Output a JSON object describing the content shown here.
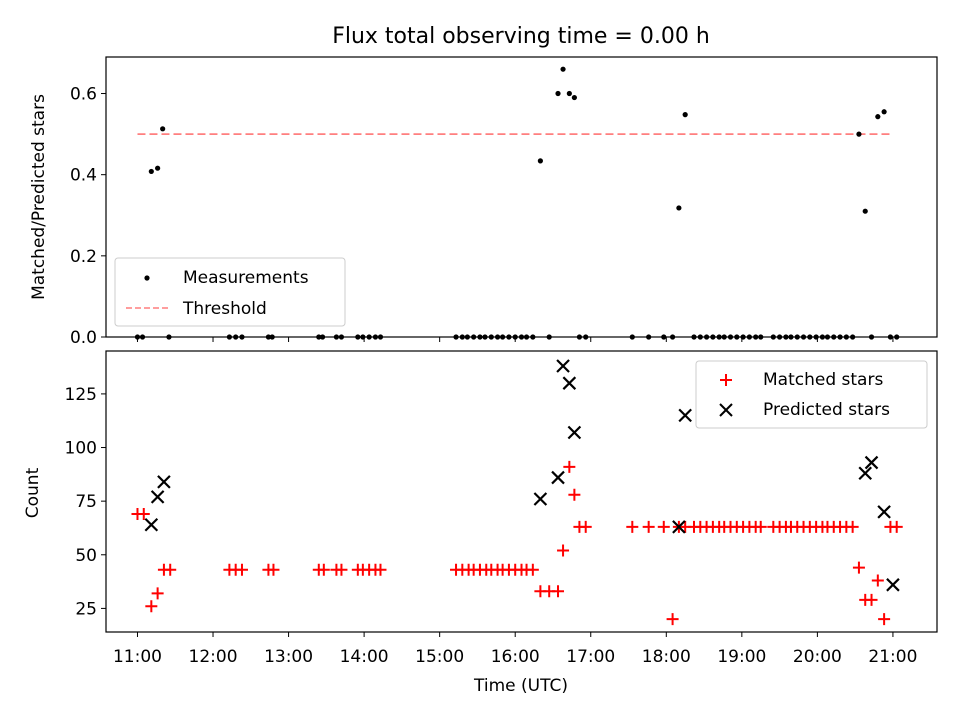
{
  "chart_data": [
    {
      "type": "scatter",
      "title": "Flux total observing time = 0.00 h",
      "xlabel": "",
      "ylabel": "Matched/Predicted stars",
      "ylim": [
        0,
        0.69
      ],
      "yticks": [
        0.0,
        0.2,
        0.4,
        0.6
      ],
      "ytick_labels": [
        "0.0",
        "0.2",
        "0.4",
        "0.6"
      ],
      "grid": false,
      "legend_position": "lower-left",
      "series": [
        {
          "name": "Measurements",
          "marker": "dot",
          "color": "#000000",
          "x": [
            "11:00",
            "11:04",
            "11:11",
            "11:16",
            "11:20",
            "11:25",
            "12:13",
            "12:18",
            "12:23",
            "12:44",
            "12:47",
            "13:24",
            "13:27",
            "13:38",
            "13:42",
            "13:55",
            "13:59",
            "14:04",
            "14:09",
            "14:13",
            "15:13",
            "15:18",
            "15:22",
            "15:27",
            "15:32",
            "15:36",
            "15:41",
            "15:46",
            "15:50",
            "15:55",
            "16:00",
            "16:05",
            "16:09",
            "16:14",
            "16:20",
            "16:27",
            "16:34",
            "16:38",
            "16:43",
            "16:47",
            "16:51",
            "16:56",
            "17:33",
            "17:46",
            "17:58",
            "18:05",
            "18:10",
            "18:15",
            "18:22",
            "18:27",
            "18:32",
            "18:37",
            "18:42",
            "18:46",
            "18:51",
            "18:56",
            "19:01",
            "19:06",
            "19:11",
            "19:15",
            "19:25",
            "19:30",
            "19:35",
            "19:39",
            "19:44",
            "19:49",
            "19:54",
            "19:59",
            "20:04",
            "20:08",
            "20:13",
            "20:18",
            "20:23",
            "20:28",
            "20:33",
            "20:38",
            "20:43",
            "20:48",
            "20:53",
            "20:58",
            "21:03"
          ],
          "y": [
            0,
            0,
            0.408,
            0.416,
            0.513,
            0,
            0,
            0,
            0,
            0,
            0,
            0,
            0,
            0,
            0,
            0,
            0,
            0,
            0,
            0,
            0,
            0,
            0,
            0,
            0,
            0,
            0,
            0,
            0,
            0,
            0,
            0,
            0,
            0,
            0.434,
            0,
            0.6,
            0.66,
            0.6,
            0.59,
            0,
            0,
            0,
            0,
            0,
            0,
            0.318,
            0.548,
            0,
            0,
            0,
            0,
            0,
            0,
            0,
            0,
            0,
            0,
            0,
            0,
            0,
            0,
            0,
            0,
            0,
            0,
            0,
            0,
            0,
            0,
            0,
            0,
            0,
            0,
            0.5,
            0.31,
            0,
            0.543,
            0.555,
            0,
            0
          ]
        },
        {
          "name": "Threshold",
          "style": "dashed",
          "color": "#ff7f7f",
          "x": [
            "11:00",
            "21:00"
          ],
          "y": [
            0.5,
            0.5
          ]
        }
      ]
    },
    {
      "type": "scatter",
      "title": "",
      "xlabel": "Time (UTC)",
      "ylabel": "Count",
      "xlim": [
        "10:35",
        "21:35"
      ],
      "xticks": [
        "11:00",
        "12:00",
        "13:00",
        "14:00",
        "15:00",
        "16:00",
        "17:00",
        "18:00",
        "19:00",
        "20:00",
        "21:00"
      ],
      "ylim": [
        14,
        145
      ],
      "yticks": [
        25,
        50,
        75,
        100,
        125
      ],
      "grid": false,
      "legend_position": "upper-right",
      "series": [
        {
          "name": "Matched stars",
          "marker": "plus",
          "color": "#ff0000",
          "x": [
            "11:00",
            "11:05",
            "11:11",
            "11:16",
            "11:21",
            "11:26",
            "12:13",
            "12:18",
            "12:23",
            "12:44",
            "12:48",
            "13:24",
            "13:28",
            "13:38",
            "13:42",
            "13:55",
            "13:59",
            "14:04",
            "14:09",
            "14:13",
            "15:13",
            "15:18",
            "15:23",
            "15:27",
            "15:32",
            "15:37",
            "15:41",
            "15:46",
            "15:50",
            "15:55",
            "16:00",
            "16:05",
            "16:09",
            "16:14",
            "16:20",
            "16:27",
            "16:34",
            "16:38",
            "16:43",
            "16:47",
            "16:51",
            "16:56",
            "17:33",
            "17:46",
            "17:58",
            "18:05",
            "18:10",
            "18:15",
            "18:22",
            "18:27",
            "18:32",
            "18:37",
            "18:42",
            "18:46",
            "18:51",
            "18:56",
            "19:01",
            "19:06",
            "19:11",
            "19:15",
            "19:25",
            "19:30",
            "19:35",
            "19:39",
            "19:44",
            "19:49",
            "19:54",
            "19:59",
            "20:04",
            "20:08",
            "20:13",
            "20:18",
            "20:23",
            "20:28",
            "20:33",
            "20:38",
            "20:43",
            "20:48",
            "20:53",
            "20:58",
            "21:03"
          ],
          "y": [
            69,
            69,
            26,
            32,
            43,
            43,
            43,
            43,
            43,
            43,
            43,
            43,
            43,
            43,
            43,
            43,
            43,
            43,
            43,
            43,
            43,
            43,
            43,
            43,
            43,
            43,
            43,
            43,
            43,
            43,
            43,
            43,
            43,
            43,
            33,
            33,
            33,
            52,
            91,
            78,
            63,
            63,
            63,
            63,
            63,
            20,
            63,
            63,
            63,
            63,
            63,
            63,
            63,
            63,
            63,
            63,
            63,
            63,
            63,
            63,
            63,
            63,
            63,
            63,
            63,
            63,
            63,
            63,
            63,
            63,
            63,
            63,
            63,
            63,
            44,
            29,
            29,
            38,
            20,
            63,
            63
          ]
        },
        {
          "name": "Predicted stars",
          "marker": "x",
          "color": "#000000",
          "x": [
            "11:11",
            "11:16",
            "11:21",
            "16:20",
            "16:34",
            "16:38",
            "16:43",
            "16:47",
            "18:10",
            "18:15",
            "20:38",
            "20:43",
            "20:53",
            "21:00"
          ],
          "y": [
            64,
            77,
            84,
            76,
            86,
            138,
            130,
            107,
            63,
            115,
            88,
            93,
            70,
            36
          ]
        }
      ]
    }
  ]
}
